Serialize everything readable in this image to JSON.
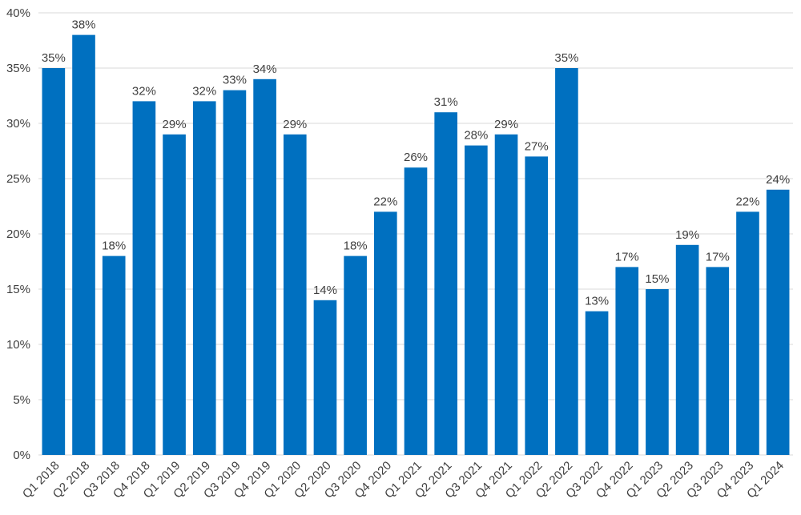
{
  "chart_data": {
    "type": "bar",
    "title": "",
    "xlabel": "",
    "ylabel": "",
    "ylim": [
      0,
      40
    ],
    "y_ticks": [
      0,
      5,
      10,
      15,
      20,
      25,
      30,
      35,
      40
    ],
    "y_tick_labels": [
      "0%",
      "5%",
      "10%",
      "15%",
      "20%",
      "25%",
      "30%",
      "35%",
      "40%"
    ],
    "grid": true,
    "bar_color": "#0070C0",
    "categories": [
      "Q1 2018",
      "Q2 2018",
      "Q3 2018",
      "Q4 2018",
      "Q1 2019",
      "Q2 2019",
      "Q3 2019",
      "Q4 2019",
      "Q1 2020",
      "Q2 2020",
      "Q3 2020",
      "Q4 2020",
      "Q1 2021",
      "Q2 2021",
      "Q3 2021",
      "Q4 2021",
      "Q1 2022",
      "Q2 2022",
      "Q3 2022",
      "Q4 2022",
      "Q1 2023",
      "Q2 2023",
      "Q3 2023",
      "Q4 2023",
      "Q1 2024"
    ],
    "values": [
      35,
      38,
      18,
      32,
      29,
      32,
      33,
      34,
      29,
      14,
      18,
      22,
      26,
      31,
      28,
      29,
      27,
      35,
      13,
      17,
      15,
      19,
      17,
      22,
      24
    ],
    "data_labels": [
      "35%",
      "38%",
      "18%",
      "32%",
      "29%",
      "32%",
      "33%",
      "34%",
      "29%",
      "14%",
      "18%",
      "22%",
      "26%",
      "31%",
      "28%",
      "29%",
      "27%",
      "35%",
      "13%",
      "17%",
      "15%",
      "19%",
      "17%",
      "22%",
      "24%"
    ]
  }
}
